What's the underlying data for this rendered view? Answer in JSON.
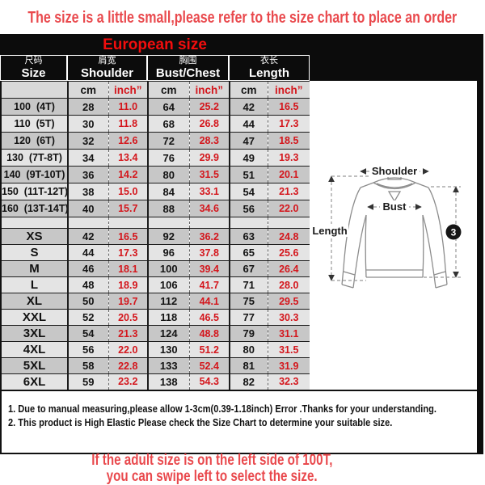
{
  "colors": {
    "notice_red": "#e9494d",
    "title_red": "#f20d0d",
    "value_red": "#d4161c",
    "band_black": "#0c0c0c",
    "row_gray": "#c7c7c7",
    "row_light": "#e4e4e4",
    "subhead_gray": "#d9d9d9"
  },
  "notices": {
    "top": "The size is a little small,please refer to the size chart to place an order",
    "bottom_line1": "If the adult size is on the left side of 100T,",
    "bottom_line2": "you can swipe left to select the size."
  },
  "table": {
    "title": "European size",
    "columns": [
      {
        "zh": "尺码",
        "en": "Size"
      },
      {
        "zh": "肩宽",
        "en": "Shoulder"
      },
      {
        "zh": "胸围",
        "en": "Bust/Chest"
      },
      {
        "zh": "衣长",
        "en": "Length"
      }
    ],
    "units": {
      "cm": "cm",
      "inch": "inch”"
    },
    "rows": [
      {
        "size": "100",
        "tag": "(4T)",
        "values": [
          "28",
          "11.0",
          "64",
          "25.2",
          "42",
          "16.5"
        ]
      },
      {
        "size": "110",
        "tag": "(5T)",
        "values": [
          "30",
          "11.8",
          "68",
          "26.8",
          "44",
          "17.3"
        ]
      },
      {
        "size": "120",
        "tag": "(6T)",
        "values": [
          "32",
          "12.6",
          "72",
          "28.3",
          "47",
          "18.5"
        ]
      },
      {
        "size": "130",
        "tag": "(7T-8T)",
        "values": [
          "34",
          "13.4",
          "76",
          "29.9",
          "49",
          "19.3"
        ]
      },
      {
        "size": "140",
        "tag": "(9T-10T)",
        "values": [
          "36",
          "14.2",
          "80",
          "31.5",
          "51",
          "20.1"
        ]
      },
      {
        "size": "150",
        "tag": "(11T-12T)",
        "values": [
          "38",
          "15.0",
          "84",
          "33.1",
          "54",
          "21.3"
        ]
      },
      {
        "size": "160",
        "tag": "(13T-14T)",
        "values": [
          "40",
          "15.7",
          "88",
          "34.6",
          "56",
          "22.0"
        ]
      },
      {
        "spacer": true
      },
      {
        "size": "XS",
        "values": [
          "42",
          "16.5",
          "92",
          "36.2",
          "63",
          "24.8"
        ]
      },
      {
        "size": "S",
        "values": [
          "44",
          "17.3",
          "96",
          "37.8",
          "65",
          "25.6"
        ]
      },
      {
        "size": "M",
        "values": [
          "46",
          "18.1",
          "100",
          "39.4",
          "67",
          "26.4"
        ]
      },
      {
        "size": "L",
        "values": [
          "48",
          "18.9",
          "106",
          "41.7",
          "71",
          "28.0"
        ]
      },
      {
        "size": "XL",
        "values": [
          "50",
          "19.7",
          "112",
          "44.1",
          "75",
          "29.5"
        ]
      },
      {
        "size": "XXL",
        "values": [
          "52",
          "20.5",
          "118",
          "46.5",
          "77",
          "30.3"
        ]
      },
      {
        "size": "3XL",
        "values": [
          "54",
          "21.3",
          "124",
          "48.8",
          "79",
          "31.1"
        ]
      },
      {
        "size": "4XL",
        "values": [
          "56",
          "22.0",
          "130",
          "51.2",
          "80",
          "31.5"
        ]
      },
      {
        "size": "5XL",
        "values": [
          "58",
          "22.8",
          "133",
          "52.4",
          "81",
          "31.9"
        ]
      },
      {
        "size": "6XL",
        "values": [
          "59",
          "23.2",
          "138",
          "54.3",
          "82",
          "32.3"
        ]
      }
    ]
  },
  "notes": {
    "line1": "1. Due to manual measuring,please allow 1-3cm(0.39-1.18inch) Error .Thanks for your understanding.",
    "line2": "2. This product is High Elastic Please check the Size Chart to determine your suitable size."
  },
  "diagram": {
    "shoulder_label": "Shoulder",
    "bust_label": "Bust",
    "length_label": "Length",
    "badge": "3"
  }
}
